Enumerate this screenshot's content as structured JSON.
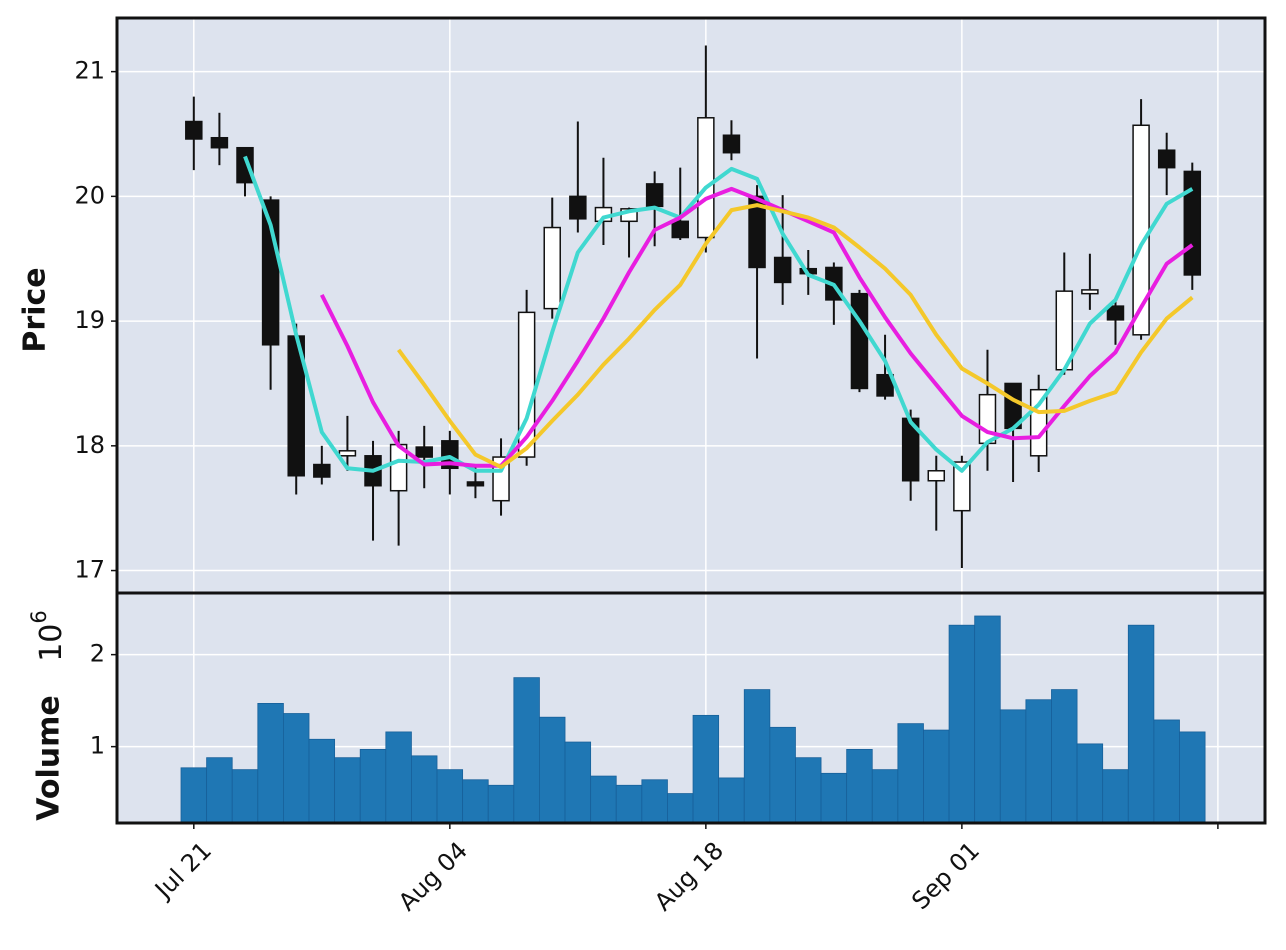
{
  "chart_data": [
    {
      "type": "candlestick",
      "ylabel": "Price",
      "open": [
        20.6,
        20.47,
        20.39,
        19.97,
        18.88,
        17.85,
        17.92,
        17.92,
        17.64,
        17.99,
        18.04,
        17.71,
        17.56,
        17.91,
        19.1,
        20.0,
        19.8,
        19.8,
        20.1,
        19.8,
        19.67,
        20.49,
        20.0,
        19.51,
        19.42,
        19.43,
        19.22,
        18.57,
        18.22,
        17.72,
        17.48,
        18.02,
        18.5,
        17.92,
        18.61,
        19.22,
        19.12,
        18.89,
        20.37,
        20.2
      ],
      "high": [
        20.8,
        20.67,
        20.39,
        20.0,
        18.98,
        18.0,
        18.24,
        18.04,
        18.12,
        18.16,
        18.12,
        17.84,
        18.06,
        19.25,
        19.99,
        20.6,
        20.31,
        19.91,
        20.2,
        20.23,
        21.21,
        20.61,
        20.09,
        20.01,
        19.57,
        19.47,
        19.25,
        18.89,
        18.29,
        17.92,
        17.92,
        18.77,
        18.5,
        18.57,
        19.55,
        19.54,
        19.17,
        20.78,
        20.51,
        20.27
      ],
      "low": [
        20.21,
        20.25,
        20.0,
        18.45,
        17.61,
        17.69,
        17.8,
        17.24,
        17.2,
        17.66,
        17.61,
        17.58,
        17.44,
        17.84,
        19.02,
        19.71,
        19.61,
        19.51,
        19.6,
        19.65,
        19.55,
        20.29,
        18.7,
        19.13,
        19.21,
        18.97,
        18.43,
        18.37,
        17.56,
        17.32,
        17.02,
        17.8,
        17.71,
        17.79,
        18.57,
        19.09,
        18.81,
        18.85,
        20.01,
        19.25
      ],
      "close": [
        20.46,
        20.39,
        20.11,
        18.81,
        17.76,
        17.75,
        17.96,
        17.68,
        18.01,
        17.91,
        17.82,
        17.68,
        17.91,
        19.07,
        19.75,
        19.82,
        19.91,
        19.9,
        19.92,
        19.67,
        20.63,
        20.35,
        19.43,
        19.31,
        19.38,
        19.17,
        18.46,
        18.4,
        17.72,
        17.8,
        17.87,
        18.41,
        18.14,
        18.45,
        19.24,
        19.25,
        19.01,
        20.57,
        20.23,
        19.37
      ],
      "up_color": "#ffffff",
      "down_color": "#111111",
      "moving_averages": [
        {
          "color": "#40d8d0",
          "values": [
            null,
            null,
            20.32,
            19.77,
            18.89,
            18.11,
            17.82,
            17.8,
            17.88,
            17.87,
            17.91,
            17.8,
            17.8,
            18.22,
            18.91,
            19.55,
            19.83,
            19.88,
            19.91,
            19.83,
            20.07,
            20.22,
            20.14,
            19.7,
            19.37,
            19.29,
            19.0,
            18.68,
            18.19,
            17.97,
            17.8,
            18.03,
            18.14,
            18.33,
            18.61,
            18.98,
            19.17,
            19.61,
            19.94,
            20.06
          ]
        },
        {
          "color": "#e81ee0",
          "values": [
            null,
            null,
            null,
            null,
            null,
            19.21,
            18.8,
            18.35,
            18.0,
            17.85,
            17.86,
            17.84,
            17.84,
            18.07,
            18.36,
            18.68,
            19.02,
            19.39,
            19.73,
            19.83,
            19.98,
            20.06,
            19.98,
            19.89,
            19.8,
            19.71,
            19.35,
            19.03,
            18.74,
            18.49,
            18.24,
            18.11,
            18.06,
            18.07,
            18.32,
            18.56,
            18.75,
            19.11,
            19.46,
            19.61
          ]
        },
        {
          "color": "#f4c82a",
          "values": [
            null,
            null,
            null,
            null,
            null,
            null,
            null,
            null,
            18.77,
            18.49,
            18.2,
            17.93,
            17.83,
            17.98,
            18.2,
            18.41,
            18.65,
            18.86,
            19.09,
            19.29,
            19.62,
            19.89,
            19.93,
            19.88,
            19.83,
            19.75,
            19.59,
            19.42,
            19.21,
            18.89,
            18.62,
            18.5,
            18.37,
            18.27,
            18.28,
            18.36,
            18.43,
            18.75,
            19.02,
            19.19
          ]
        }
      ],
      "xlim": [
        -3,
        41.84
      ],
      "ylim": [
        16.82,
        21.43
      ],
      "yticks": [
        17,
        18,
        19,
        20,
        21
      ],
      "xticks": [
        0,
        10,
        20,
        30,
        40
      ],
      "grid": true
    },
    {
      "type": "bar",
      "ylabel": "Volume",
      "yoffset": {
        "base": "10",
        "exponent": "6"
      },
      "values": [
        0.77,
        0.88,
        0.75,
        1.47,
        1.36,
        1.08,
        0.88,
        0.97,
        1.16,
        0.9,
        0.75,
        0.64,
        0.58,
        1.75,
        1.32,
        1.05,
        0.68,
        0.58,
        0.64,
        0.49,
        1.34,
        0.66,
        1.62,
        1.21,
        0.88,
        0.71,
        0.97,
        0.75,
        1.25,
        1.18,
        2.32,
        2.42,
        1.4,
        1.51,
        1.62,
        1.03,
        0.75,
        2.32,
        1.29,
        1.16
      ],
      "color": "#1f77b4",
      "xlim": [
        -3,
        41.84
      ],
      "ylim": [
        0.17,
        2.67
      ],
      "yticks": [
        1,
        2
      ],
      "xticks": [
        {
          "value": 0,
          "label": "Jul 21"
        },
        {
          "value": 10,
          "label": "Aug 04"
        },
        {
          "value": 20,
          "label": "Aug 18"
        },
        {
          "value": 30,
          "label": "Sep 01"
        },
        {
          "value": 40,
          "label": null
        }
      ],
      "grid": true
    }
  ]
}
